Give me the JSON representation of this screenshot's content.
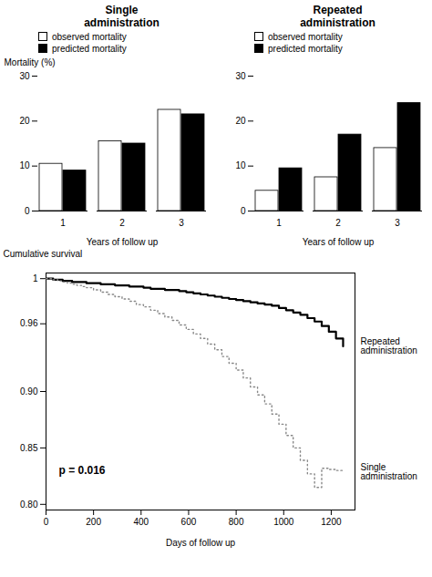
{
  "chart_data": [
    {
      "type": "bar",
      "title": "Single\nadministration",
      "categories": [
        "1",
        "2",
        "3"
      ],
      "series": [
        {
          "name": "observed mortality",
          "color": "white",
          "values": [
            10.5,
            15.5,
            22.5
          ]
        },
        {
          "name": "predicted mortality",
          "color": "black",
          "values": [
            9.0,
            15.0,
            21.5
          ]
        }
      ],
      "xlabel": "Years of follow up",
      "ylabel": "Mortality (%)",
      "ylim": [
        0,
        30
      ],
      "yticks": [
        0,
        10,
        20,
        30
      ],
      "legend": "upper left"
    },
    {
      "type": "bar",
      "title": "Repeated\nadministration",
      "categories": [
        "1",
        "2",
        "3"
      ],
      "series": [
        {
          "name": "observed mortality",
          "color": "white",
          "values": [
            4.5,
            7.5,
            14.0
          ]
        },
        {
          "name": "predicted mortality",
          "color": "black",
          "values": [
            9.5,
            17.0,
            24.0
          ]
        }
      ],
      "xlabel": "Years of follow up",
      "ylim": [
        0,
        30
      ],
      "yticks": [
        0,
        10,
        20,
        30
      ],
      "legend": "upper left"
    },
    {
      "type": "step",
      "x": [
        0,
        10,
        30,
        50,
        70,
        90,
        110,
        130,
        150,
        170,
        200,
        230,
        260,
        290,
        320,
        350,
        380,
        410,
        440,
        470,
        500,
        530,
        560,
        590,
        620,
        650,
        680,
        710,
        740,
        770,
        800,
        830,
        860,
        890,
        920,
        950,
        980,
        1010,
        1040,
        1070,
        1100,
        1130,
        1160,
        1190,
        1220,
        1250
      ],
      "series": [
        {
          "name": "Repeated\nadministration",
          "color": "black",
          "line_style": "solid",
          "values": [
            1.0,
            1.0,
            0.999,
            0.999,
            0.998,
            0.998,
            0.997,
            0.997,
            0.997,
            0.996,
            0.996,
            0.995,
            0.995,
            0.994,
            0.994,
            0.993,
            0.993,
            0.992,
            0.991,
            0.991,
            0.99,
            0.99,
            0.989,
            0.988,
            0.987,
            0.986,
            0.985,
            0.984,
            0.983,
            0.982,
            0.981,
            0.98,
            0.979,
            0.978,
            0.977,
            0.976,
            0.974,
            0.972,
            0.97,
            0.968,
            0.965,
            0.962,
            0.958,
            0.953,
            0.947,
            0.94
          ]
        },
        {
          "name": "Single\nadministration",
          "color": "#888888",
          "line_style": "dotted",
          "values": [
            1.0,
            1.0,
            0.999,
            0.998,
            0.997,
            0.996,
            0.995,
            0.994,
            0.993,
            0.992,
            0.99,
            0.988,
            0.986,
            0.984,
            0.982,
            0.98,
            0.977,
            0.975,
            0.972,
            0.969,
            0.966,
            0.963,
            0.959,
            0.955,
            0.951,
            0.947,
            0.942,
            0.937,
            0.931,
            0.925,
            0.919,
            0.912,
            0.904,
            0.897,
            0.889,
            0.88,
            0.871,
            0.861,
            0.85,
            0.839,
            0.827,
            0.815,
            0.832,
            0.831,
            0.83,
            0.829
          ]
        }
      ],
      "xlabel": "Days of follow up",
      "ylabel": "Cumulative survival",
      "xlim": [
        0,
        1300
      ],
      "xticks": [
        0,
        200,
        400,
        600,
        800,
        1000,
        1200
      ],
      "ylim": [
        0.795,
        1.005
      ],
      "yticks": [
        {
          "value": 0.8,
          "label": "0.80"
        },
        0.85,
        {
          "value": 0.9,
          "label": "0.90"
        },
        0.96,
        1
      ],
      "annotations": [
        "p = 0.016"
      ]
    }
  ]
}
